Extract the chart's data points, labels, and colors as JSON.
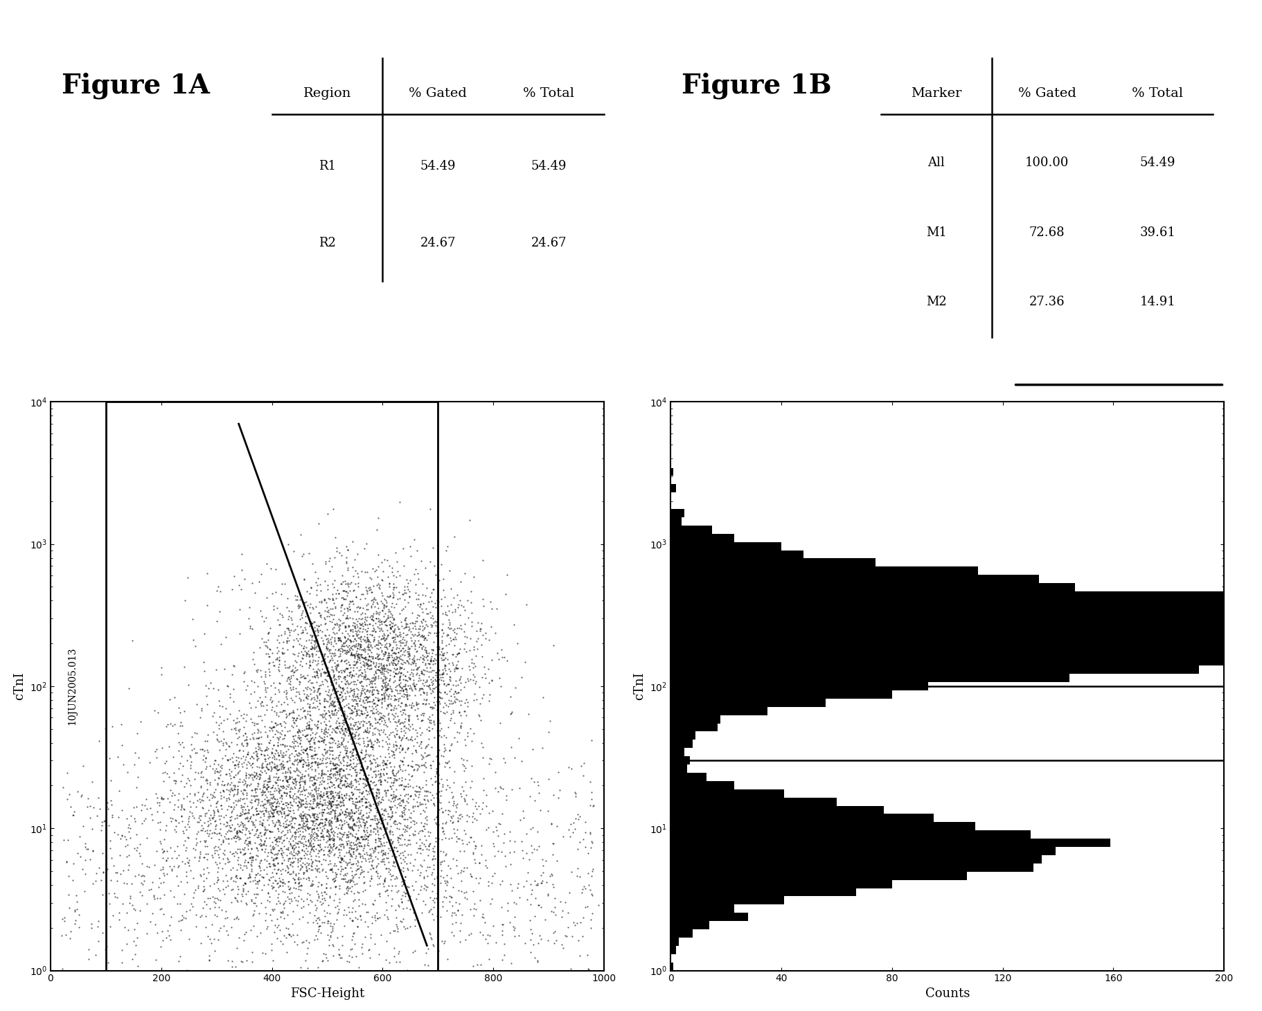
{
  "fig_title_A": "Figure 1A",
  "fig_title_B": "Figure 1B",
  "file_label": "10JUN2005.013",
  "scatter_xlabel": "FSC-Height",
  "scatter_ylabel": "cTnI",
  "scatter_xlim": [
    0,
    1000
  ],
  "scatter_xticks": [
    0,
    200,
    400,
    600,
    800,
    1000
  ],
  "hist_xlabel": "cTnI",
  "hist_ylabel": "Counts",
  "hist_xticks": [
    0,
    40,
    80,
    120,
    160,
    200
  ],
  "table_A": {
    "headers": [
      "Region",
      "% Gated",
      "% Total"
    ],
    "rows": [
      [
        "R1",
        "54.49",
        "54.49"
      ],
      [
        "R2",
        "24.67",
        "24.67"
      ]
    ]
  },
  "table_B": {
    "headers": [
      "Marker",
      "% Gated",
      "% Total"
    ],
    "rows": [
      [
        "All",
        "100.00",
        "54.49"
      ],
      [
        "M1",
        "72.68",
        "39.61"
      ],
      [
        "M2",
        "27.36",
        "14.91"
      ]
    ]
  },
  "bg_color": "#ffffff",
  "dot_color": "#000000",
  "hist_color": "#000000",
  "text_color": "#000000",
  "title_fontsize": 28,
  "label_fontsize": 13,
  "tick_fontsize": 10,
  "table_header_fontsize": 14,
  "table_row_fontsize": 13
}
